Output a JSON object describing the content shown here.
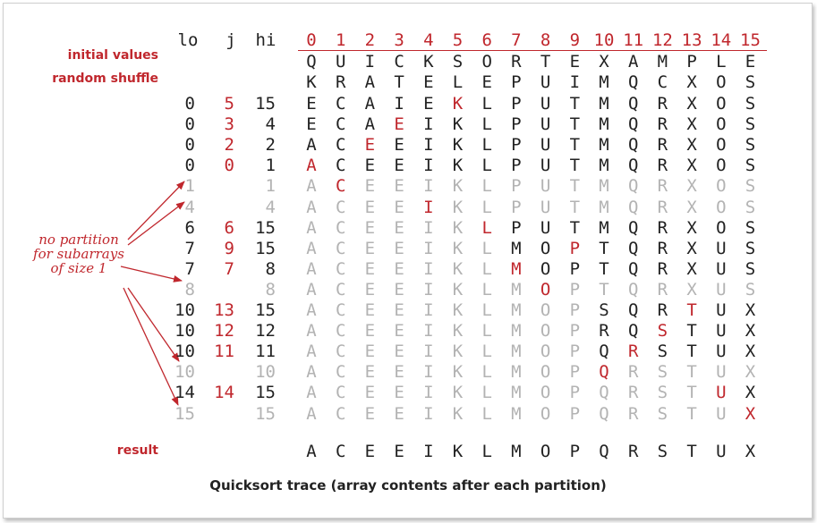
{
  "headers": {
    "lo": "lo",
    "j": "j",
    "hi": "hi"
  },
  "indices": [
    "0",
    "1",
    "2",
    "3",
    "4",
    "5",
    "6",
    "7",
    "8",
    "9",
    "10",
    "11",
    "12",
    "13",
    "14",
    "15"
  ],
  "initial": {
    "label": "initial values",
    "chars": "QUICKSORTEXAMPLE"
  },
  "shuffle": {
    "label": "random shuffle",
    "chars": "KRATELEPUIMQCXOS"
  },
  "rows": [
    {
      "lo": "0",
      "j": "5",
      "hi": "15",
      "chars": "ECAIEKLPUTMQRXOS",
      "mark": 5,
      "g1": 16,
      "g2": 16,
      "trivial": false
    },
    {
      "lo": "0",
      "j": "3",
      "hi": "4",
      "chars": "ECAEIKLPUTMQRXOS",
      "mark": 3,
      "g1": 5,
      "g2": 16,
      "trivial": false
    },
    {
      "lo": "0",
      "j": "2",
      "hi": "2",
      "chars": "ACEEIKLPUTMQRXOS",
      "mark": 2,
      "g1": 3,
      "g2": 16,
      "trivial": false
    },
    {
      "lo": "0",
      "j": "0",
      "hi": "1",
      "chars": "ACEEIKLPUTMQRXOS",
      "mark": 0,
      "g1": 2,
      "g2": 16,
      "trivial": false
    },
    {
      "lo": "1",
      "j": "",
      "hi": "1",
      "chars": "ACEEIKLPUTMQRXOS",
      "mark": 1,
      "g1": 16,
      "g2": 16,
      "trivial": true
    },
    {
      "lo": "4",
      "j": "",
      "hi": "4",
      "chars": "ACEEIKLPUTMQRXOS",
      "mark": 4,
      "g1": 16,
      "g2": 16,
      "trivial": true
    },
    {
      "lo": "6",
      "j": "6",
      "hi": "15",
      "chars": "ACEEIKLPUTMQRXOS",
      "mark": 6,
      "g1": 16,
      "g2": 16,
      "trivial": false
    },
    {
      "lo": "7",
      "j": "9",
      "hi": "15",
      "chars": "ACEEIKLMOPTQRXUS",
      "mark": 9,
      "g1": 16,
      "g2": 16,
      "trivial": false
    },
    {
      "lo": "7",
      "j": "7",
      "hi": "8",
      "chars": "ACEEIKLMOPTQRXUS",
      "mark": 7,
      "g1": 9,
      "g2": 16,
      "trivial": false
    },
    {
      "lo": "8",
      "j": "",
      "hi": "8",
      "chars": "ACEEIKLMOPTQRXUS",
      "mark": 8,
      "g1": 16,
      "g2": 16,
      "trivial": true
    },
    {
      "lo": "10",
      "j": "13",
      "hi": "15",
      "chars": "ACEEIKLMOPSQRTUX",
      "mark": 13,
      "g1": 16,
      "g2": 16,
      "trivial": false
    },
    {
      "lo": "10",
      "j": "12",
      "hi": "12",
      "chars": "ACEEIKLMOPRQSTUX",
      "mark": 12,
      "g1": 13,
      "g2": 16,
      "trivial": false
    },
    {
      "lo": "10",
      "j": "11",
      "hi": "11",
      "chars": "ACEEIKLMOPQRSTUX",
      "mark": 11,
      "g1": 12,
      "g2": 16,
      "trivial": false
    },
    {
      "lo": "10",
      "j": "",
      "hi": "10",
      "chars": "ACEEIKLMOPQRSTUX",
      "mark": 10,
      "g1": 16,
      "g2": 16,
      "trivial": true
    },
    {
      "lo": "14",
      "j": "14",
      "hi": "15",
      "chars": "ACEEIKLMOPQRSTUX",
      "mark": 14,
      "g1": 16,
      "g2": 16,
      "trivial": false
    },
    {
      "lo": "15",
      "j": "",
      "hi": "15",
      "chars": "ACEEIKLMOPQRSTUX",
      "mark": 15,
      "g1": 16,
      "g2": 16,
      "trivial": true
    }
  ],
  "result": {
    "label": "result",
    "chars": "ACEEIKLMOPQRSTUX"
  },
  "note": "no partition for subarrays of size 1",
  "caption": "Quicksort trace (array contents after each partition)",
  "colors": {
    "red": "#c0272d",
    "gray": "#b3b3b3",
    "black": "#222222"
  }
}
